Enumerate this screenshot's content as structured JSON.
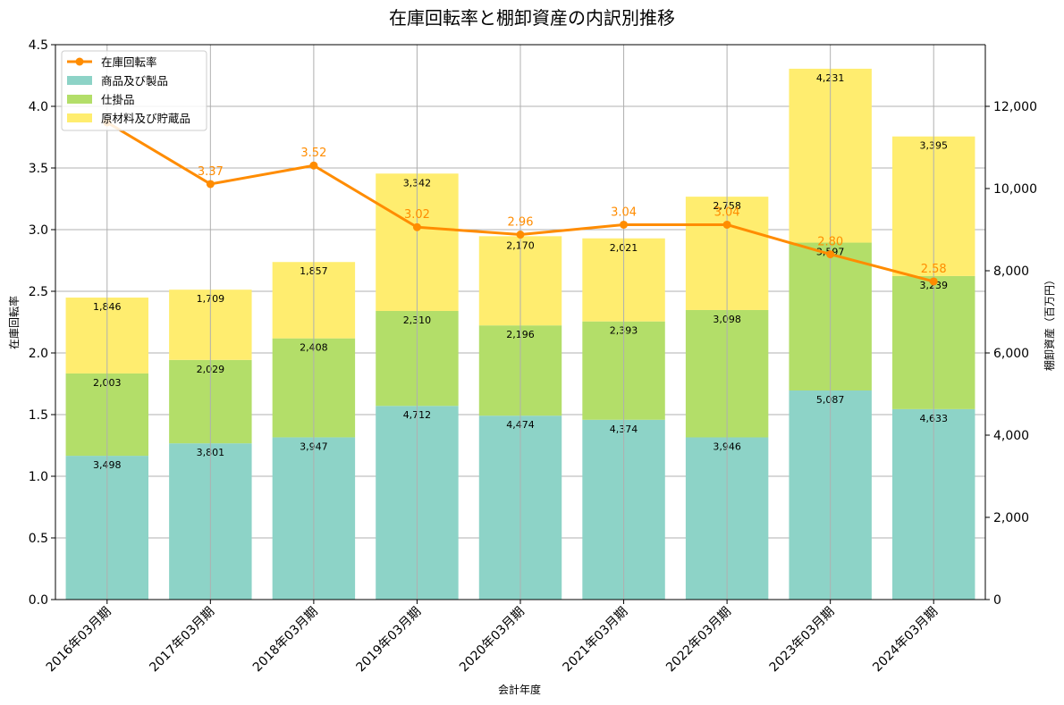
{
  "chart_data": {
    "type": "bar",
    "title": "在庫回転率と棚卸資産の内訳別推移",
    "xlabel": "会計年度",
    "ylabel_left": "在庫回転率",
    "ylabel_right": "棚卸資産（百万円）",
    "categories": [
      "2016年03月期",
      "2017年03月期",
      "2018年03月期",
      "2019年03月期",
      "2020年03月期",
      "2021年03月期",
      "2022年03月期",
      "2023年03月期",
      "2024年03月期"
    ],
    "left_ylim": [
      0,
      4.5
    ],
    "left_ticks": [
      "0.0",
      "0.5",
      "1.0",
      "1.5",
      "2.0",
      "2.5",
      "3.0",
      "3.5",
      "4.0",
      "4.5"
    ],
    "right_ylim": [
      0,
      13500
    ],
    "right_ticks": [
      "0",
      "2,000",
      "4,000",
      "6,000",
      "8,000",
      "10,000",
      "12,000"
    ],
    "grid": true,
    "legend_position": "top-left",
    "bar_series": [
      {
        "name": "商品及び製品",
        "color": "#8dd3c7",
        "values": [
          3498,
          3801,
          3947,
          4712,
          4474,
          4374,
          3946,
          5087,
          4633
        ],
        "labels": [
          "3,498",
          "3,801",
          "3,947",
          "4,712",
          "4,474",
          "4,374",
          "3,946",
          "5,087",
          "4,633"
        ]
      },
      {
        "name": "仕掛品",
        "color": "#b3de69",
        "values": [
          2003,
          2029,
          2408,
          2310,
          2196,
          2393,
          3098,
          3597,
          3239
        ],
        "labels": [
          "2,003",
          "2,029",
          "2,408",
          "2,310",
          "2,196",
          "2,393",
          "3,098",
          "3,597",
          "3,239"
        ]
      },
      {
        "name": "原材料及び貯蔵品",
        "color": "#ffed6f",
        "values": [
          1846,
          1709,
          1857,
          3342,
          2170,
          2021,
          2758,
          4231,
          3395
        ],
        "labels": [
          "1,846",
          "1,709",
          "1,857",
          "3,342",
          "2,170",
          "2,021",
          "2,758",
          "4,231",
          "3,395"
        ]
      }
    ],
    "line_series": {
      "name": "在庫回転率",
      "color": "#ff8c00",
      "values": [
        3.87,
        3.37,
        3.52,
        3.02,
        2.96,
        3.04,
        3.04,
        2.8,
        2.58
      ],
      "labels": [
        null,
        "3.37",
        "3.52",
        "3.02",
        "2.96",
        "3.04",
        "3.04",
        "2.80",
        "2.58"
      ]
    }
  }
}
